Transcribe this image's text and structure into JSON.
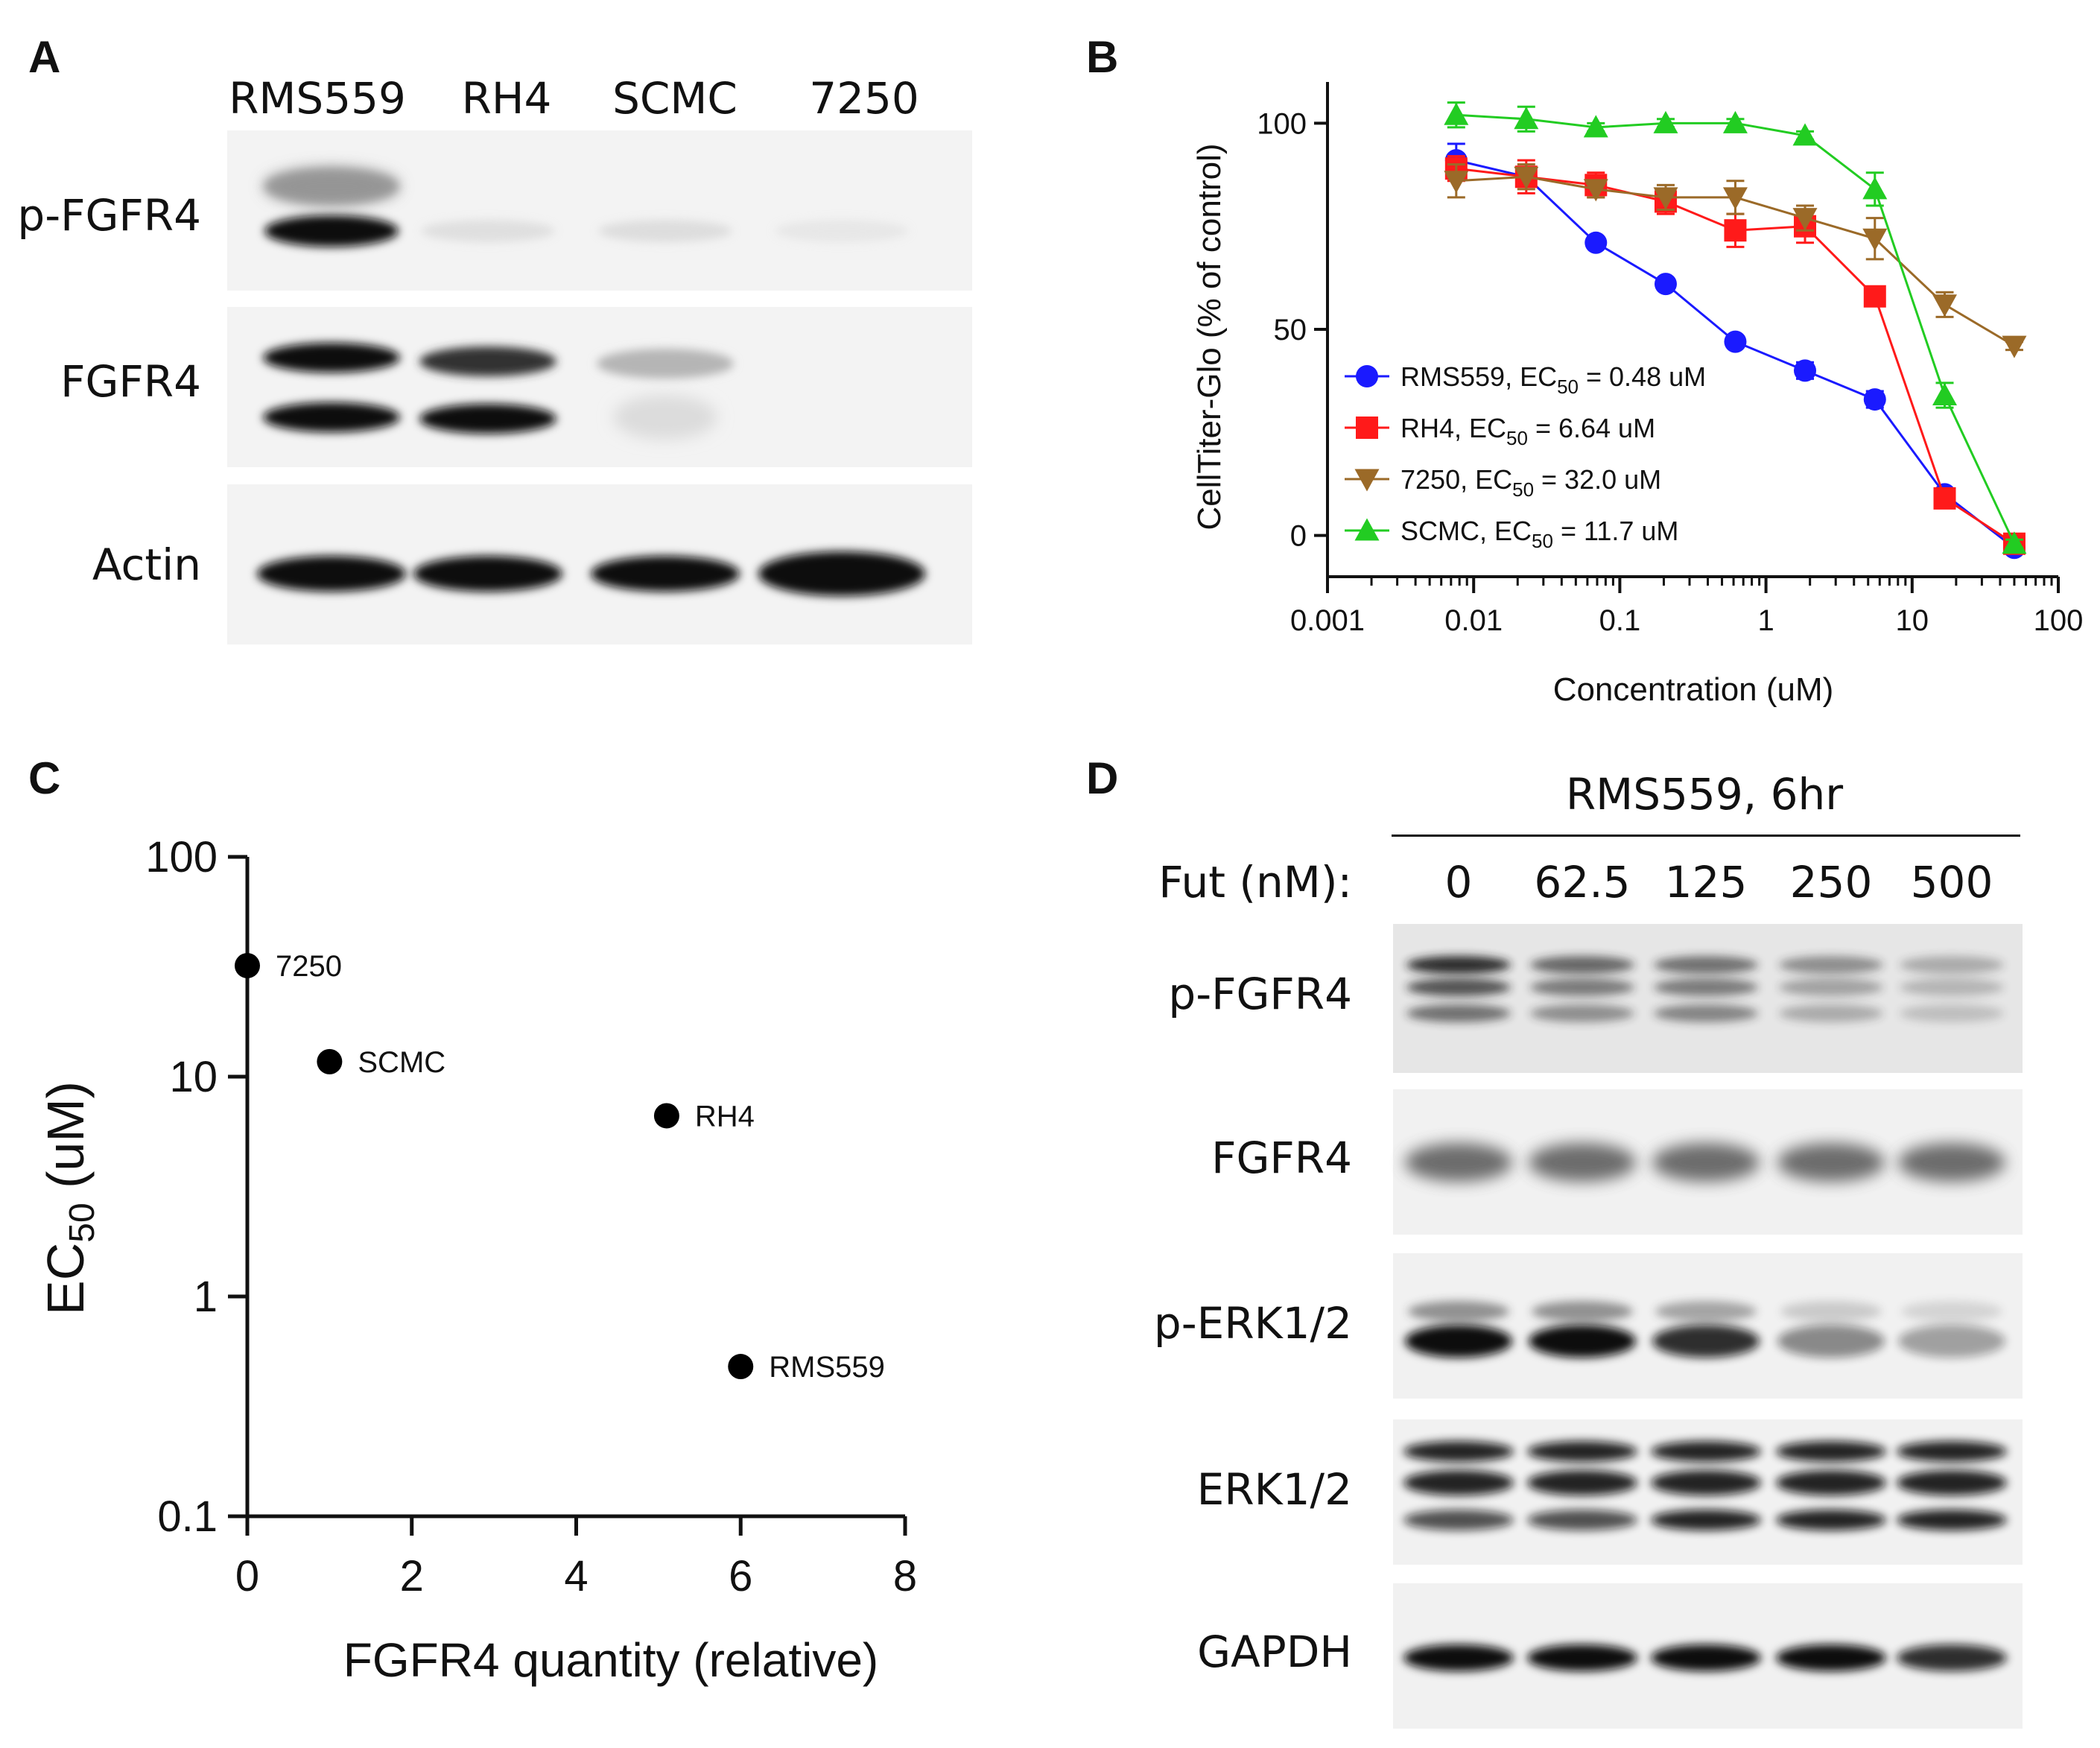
{
  "panel_a": {
    "letter": "A",
    "lanes": [
      "RMS559",
      "RH4",
      "SCMC",
      "7250"
    ],
    "rows": [
      "p-FGFR4",
      "FGFR4",
      "Actin"
    ]
  },
  "panel_b": {
    "letter": "B",
    "chart_data": {
      "type": "line",
      "xscale": "log",
      "xlabel": "Concentration (uM)",
      "ylabel": "CellTiter-Glo (% of control)",
      "xlim": [
        0.001,
        100
      ],
      "ylim": [
        -10,
        110
      ],
      "xticks": [
        "0.001",
        "0.01",
        "0.1",
        "1",
        "10",
        "100"
      ],
      "yticks": [
        "0",
        "50",
        "100"
      ],
      "legend_position": "lower-left",
      "x": [
        0.0076,
        0.0229,
        0.0686,
        0.206,
        0.617,
        1.85,
        5.56,
        16.7,
        50
      ],
      "series": [
        {
          "name": "RMS559",
          "ec50_label": "EC50 = 0.48 uM",
          "color": "#1a1aff",
          "marker": "circle",
          "values": [
            91,
            87,
            71,
            61,
            47,
            40,
            33,
            10,
            -3
          ],
          "errors": [
            4,
            2,
            1,
            1,
            1,
            2,
            2,
            1,
            1
          ]
        },
        {
          "name": "RH4",
          "ec50_label": "EC50 = 6.64 uM",
          "color": "#ff1a1a",
          "marker": "square",
          "values": [
            89,
            87,
            85,
            81,
            74,
            75,
            58,
            9,
            -2
          ],
          "errors": [
            3,
            4,
            3,
            3,
            4,
            4,
            2,
            2,
            1
          ]
        },
        {
          "name": "7250",
          "ec50_label": "EC50 = 32.0 uM",
          "color": "#9b6a28",
          "marker": "triangle-down",
          "values": [
            86,
            87,
            84,
            82,
            82,
            77,
            72,
            56,
            46
          ],
          "errors": [
            4,
            3,
            2,
            3,
            4,
            3,
            5,
            3,
            1
          ]
        },
        {
          "name": "SCMC",
          "ec50_label": "EC50 = 11.7 uM",
          "color": "#22cc22",
          "marker": "triangle-up",
          "values": [
            102,
            101,
            99,
            100,
            100,
            97,
            84,
            34,
            -2
          ],
          "errors": [
            3,
            3,
            1,
            1,
            1,
            1,
            4,
            3,
            1
          ]
        }
      ]
    }
  },
  "panel_c": {
    "letter": "C",
    "chart_data": {
      "type": "scatter",
      "xlabel": "FGFR4 quantity (relative)",
      "ylabel": "EC50 (uM)",
      "yscale": "log",
      "xlim": [
        0,
        8
      ],
      "ylim": [
        0.1,
        100
      ],
      "xticks": [
        "0",
        "2",
        "4",
        "6",
        "8"
      ],
      "yticks": [
        "0.1",
        "1",
        "10",
        "100"
      ],
      "points": [
        {
          "label": "7250",
          "x": 0,
          "y": 32.0
        },
        {
          "label": "SCMC",
          "x": 1.0,
          "y": 11.7
        },
        {
          "label": "RH4",
          "x": 5.1,
          "y": 6.64
        },
        {
          "label": "RMS559",
          "x": 6.0,
          "y": 0.48
        }
      ]
    }
  },
  "panel_d": {
    "letter": "D",
    "header": "RMS559, 6hr",
    "dose_label": "Fut (nM):",
    "doses": [
      "0",
      "62.5",
      "125",
      "250",
      "500"
    ],
    "rows": [
      "p-FGFR4",
      "FGFR4",
      "p-ERK1/2",
      "ERK1/2",
      "GAPDH"
    ]
  }
}
